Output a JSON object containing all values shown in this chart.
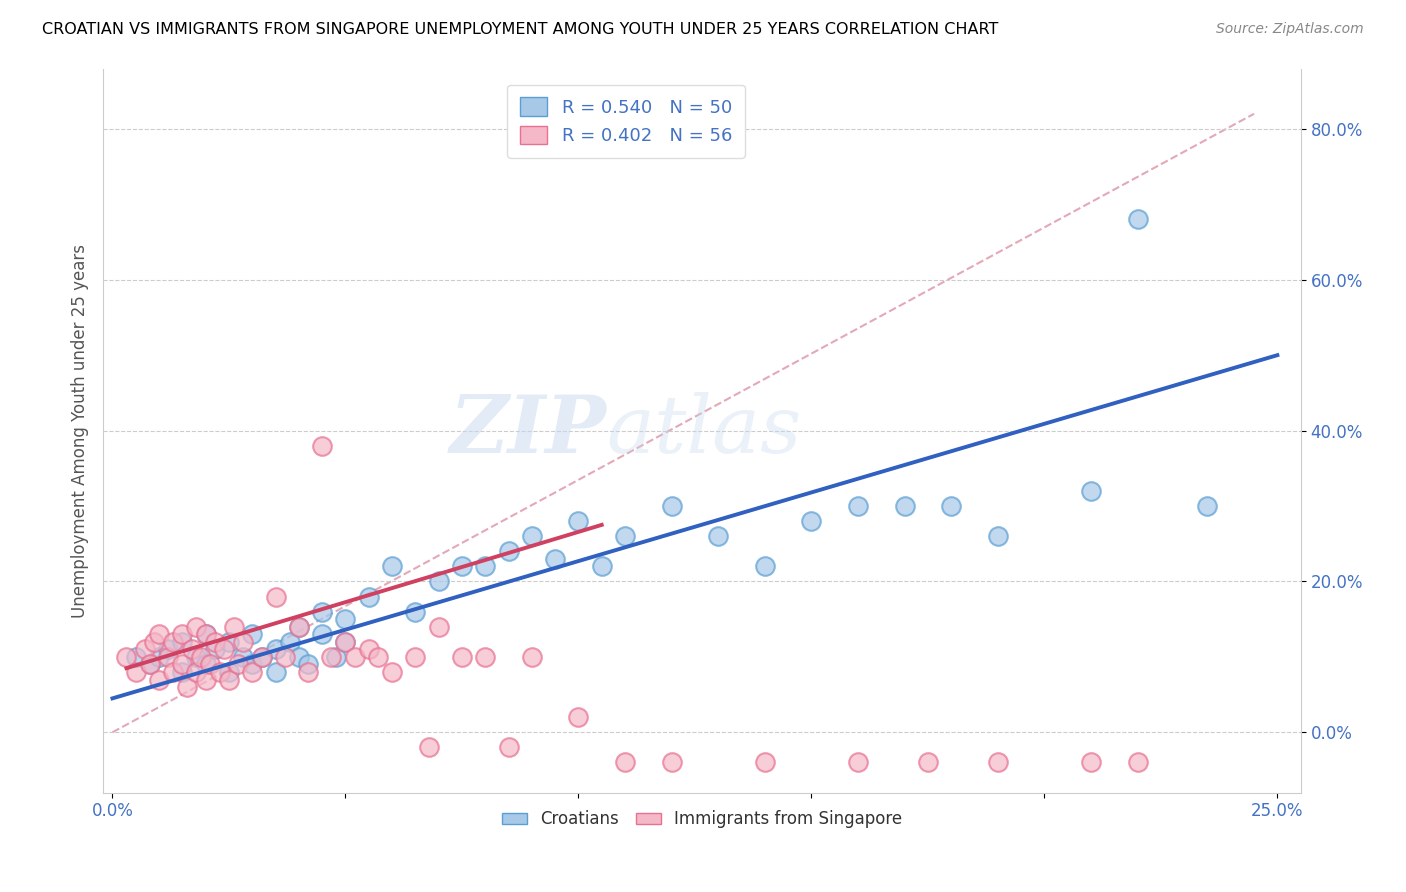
{
  "title": "CROATIAN VS IMMIGRANTS FROM SINGAPORE UNEMPLOYMENT AMONG YOUTH UNDER 25 YEARS CORRELATION CHART",
  "source": "Source: ZipAtlas.com",
  "ylabel": "Unemployment Among Youth under 25 years",
  "xlim": [
    -0.002,
    0.255
  ],
  "ylim": [
    -0.08,
    0.88
  ],
  "xticks": [
    0.0,
    0.05,
    0.1,
    0.15,
    0.2,
    0.25
  ],
  "xtick_labels": [
    "0.0%",
    "",
    "",
    "",
    "",
    "25.0%"
  ],
  "yticks": [
    0.0,
    0.2,
    0.4,
    0.6,
    0.8
  ],
  "ytick_labels": [
    "0.0%",
    "20.0%",
    "40.0%",
    "60.0%",
    "80.0%"
  ],
  "R_croatians": 0.54,
  "N_croatians": 50,
  "R_singapore": 0.402,
  "N_singapore": 56,
  "blue_color": "#a8c8e8",
  "pink_color": "#f4b8c8",
  "blue_edge_color": "#5a9fd4",
  "pink_edge_color": "#e87090",
  "blue_line_color": "#3060c0",
  "pink_line_color": "#d04060",
  "ref_line_color": "#e0a0b0",
  "watermark_zip": "ZIP",
  "watermark_atlas": "atlas",
  "scatter_blue_x": [
    0.005,
    0.008,
    0.01,
    0.012,
    0.015,
    0.015,
    0.018,
    0.02,
    0.02,
    0.022,
    0.025,
    0.025,
    0.028,
    0.03,
    0.03,
    0.032,
    0.035,
    0.035,
    0.038,
    0.04,
    0.04,
    0.042,
    0.045,
    0.045,
    0.048,
    0.05,
    0.05,
    0.055,
    0.06,
    0.065,
    0.07,
    0.075,
    0.08,
    0.085,
    0.09,
    0.095,
    0.1,
    0.105,
    0.11,
    0.12,
    0.13,
    0.14,
    0.15,
    0.16,
    0.17,
    0.18,
    0.19,
    0.21,
    0.22,
    0.235
  ],
  "scatter_blue_y": [
    0.1,
    0.09,
    0.1,
    0.11,
    0.08,
    0.12,
    0.1,
    0.09,
    0.13,
    0.11,
    0.08,
    0.12,
    0.1,
    0.09,
    0.13,
    0.1,
    0.11,
    0.08,
    0.12,
    0.1,
    0.14,
    0.09,
    0.13,
    0.16,
    0.1,
    0.12,
    0.15,
    0.18,
    0.22,
    0.16,
    0.2,
    0.22,
    0.22,
    0.24,
    0.26,
    0.23,
    0.28,
    0.22,
    0.26,
    0.3,
    0.26,
    0.22,
    0.28,
    0.3,
    0.3,
    0.3,
    0.26,
    0.32,
    0.68,
    0.3
  ],
  "scatter_pink_x": [
    0.003,
    0.005,
    0.007,
    0.008,
    0.009,
    0.01,
    0.01,
    0.012,
    0.013,
    0.013,
    0.015,
    0.015,
    0.016,
    0.017,
    0.018,
    0.018,
    0.019,
    0.02,
    0.02,
    0.021,
    0.022,
    0.023,
    0.024,
    0.025,
    0.026,
    0.027,
    0.028,
    0.03,
    0.032,
    0.035,
    0.037,
    0.04,
    0.042,
    0.045,
    0.047,
    0.05,
    0.052,
    0.055,
    0.057,
    0.06,
    0.065,
    0.068,
    0.07,
    0.075,
    0.08,
    0.085,
    0.09,
    0.1,
    0.11,
    0.12,
    0.14,
    0.16,
    0.175,
    0.19,
    0.21,
    0.22
  ],
  "scatter_pink_y": [
    0.1,
    0.08,
    0.11,
    0.09,
    0.12,
    0.07,
    0.13,
    0.1,
    0.08,
    0.12,
    0.09,
    0.13,
    0.06,
    0.11,
    0.08,
    0.14,
    0.1,
    0.07,
    0.13,
    0.09,
    0.12,
    0.08,
    0.11,
    0.07,
    0.14,
    0.09,
    0.12,
    0.08,
    0.1,
    0.18,
    0.1,
    0.14,
    0.08,
    0.38,
    0.1,
    0.12,
    0.1,
    0.11,
    0.1,
    0.08,
    0.1,
    -0.02,
    0.14,
    0.1,
    0.1,
    -0.02,
    0.1,
    0.02,
    -0.04,
    -0.04,
    -0.04,
    -0.04,
    -0.04,
    -0.04,
    -0.04,
    -0.04
  ],
  "blue_line_x": [
    0.0,
    0.25
  ],
  "blue_line_y": [
    0.045,
    0.5
  ],
  "pink_line_x": [
    0.003,
    0.105
  ],
  "pink_line_y": [
    0.085,
    0.275
  ],
  "ref_line_x": [
    0.0,
    0.245
  ],
  "ref_line_y": [
    0.0,
    0.82
  ]
}
